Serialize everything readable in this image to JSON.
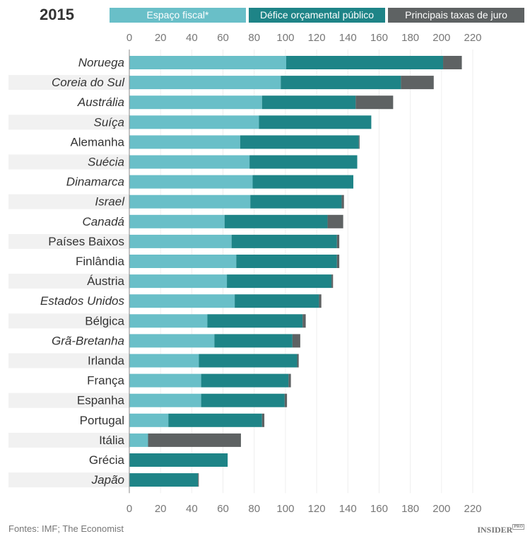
{
  "chart_data": {
    "type": "bar",
    "stacked": true,
    "orientation": "horizontal",
    "title": "2015",
    "categories": [
      "Noruega",
      "Coreia do Sul",
      "Austrália",
      "Suíça",
      "Alemanha",
      "Suécia",
      "Dinamarca",
      "Israel",
      "Canadá",
      "Países Baixos",
      "Finlândia",
      "Áustria",
      "Estados Unidos",
      "Bélgica",
      "Grã-Bretanha",
      "Irlanda",
      "França",
      "Espanha",
      "Portugal",
      "Itália",
      "Grécia",
      "Japão"
    ],
    "italic_categories": [
      "Noruega",
      "Coreia do Sul",
      "Austrália",
      "Suíça",
      "Suécia",
      "Dinamarca",
      "Israel",
      "Canadá",
      "Estados Unidos",
      "Grã-Bretanha",
      "Japão"
    ],
    "series": [
      {
        "name": "Espaço fiscal*",
        "color": "#69bfc8",
        "values": [
          100.5,
          97,
          85,
          83,
          71,
          77,
          79,
          77.5,
          61,
          65.5,
          68.5,
          62.5,
          67.5,
          50,
          54.5,
          44.5,
          46,
          46,
          25,
          12,
          0,
          0
        ]
      },
      {
        "name": "Défice orçamental público",
        "color": "#1e8487",
        "values": [
          100.5,
          77,
          60,
          72,
          76,
          69,
          64.5,
          58.5,
          66,
          67.5,
          64.5,
          67,
          54,
          61,
          50,
          63,
          56,
          53.5,
          60,
          0,
          63,
          44
        ]
      },
      {
        "name": "Principais taxas de juro",
        "color": "#5e6263",
        "values": [
          12,
          21,
          24,
          0,
          0.5,
          0,
          0,
          1.5,
          10,
          1.5,
          1.5,
          1,
          1.5,
          2,
          5,
          1,
          1.5,
          1.5,
          1.5,
          59.5,
          0,
          0.5
        ]
      }
    ],
    "xlim": [
      0,
      220
    ],
    "xticks": [
      "0",
      "20",
      "40",
      "60",
      "80",
      "100",
      "120",
      "140",
      "160",
      "180",
      "200",
      "220"
    ],
    "grid": true,
    "legend_position": "top"
  },
  "footer": {
    "source": "Fontes: IMF; The Economist",
    "logo": "INSIDER",
    "logo_badge": "PRO"
  }
}
